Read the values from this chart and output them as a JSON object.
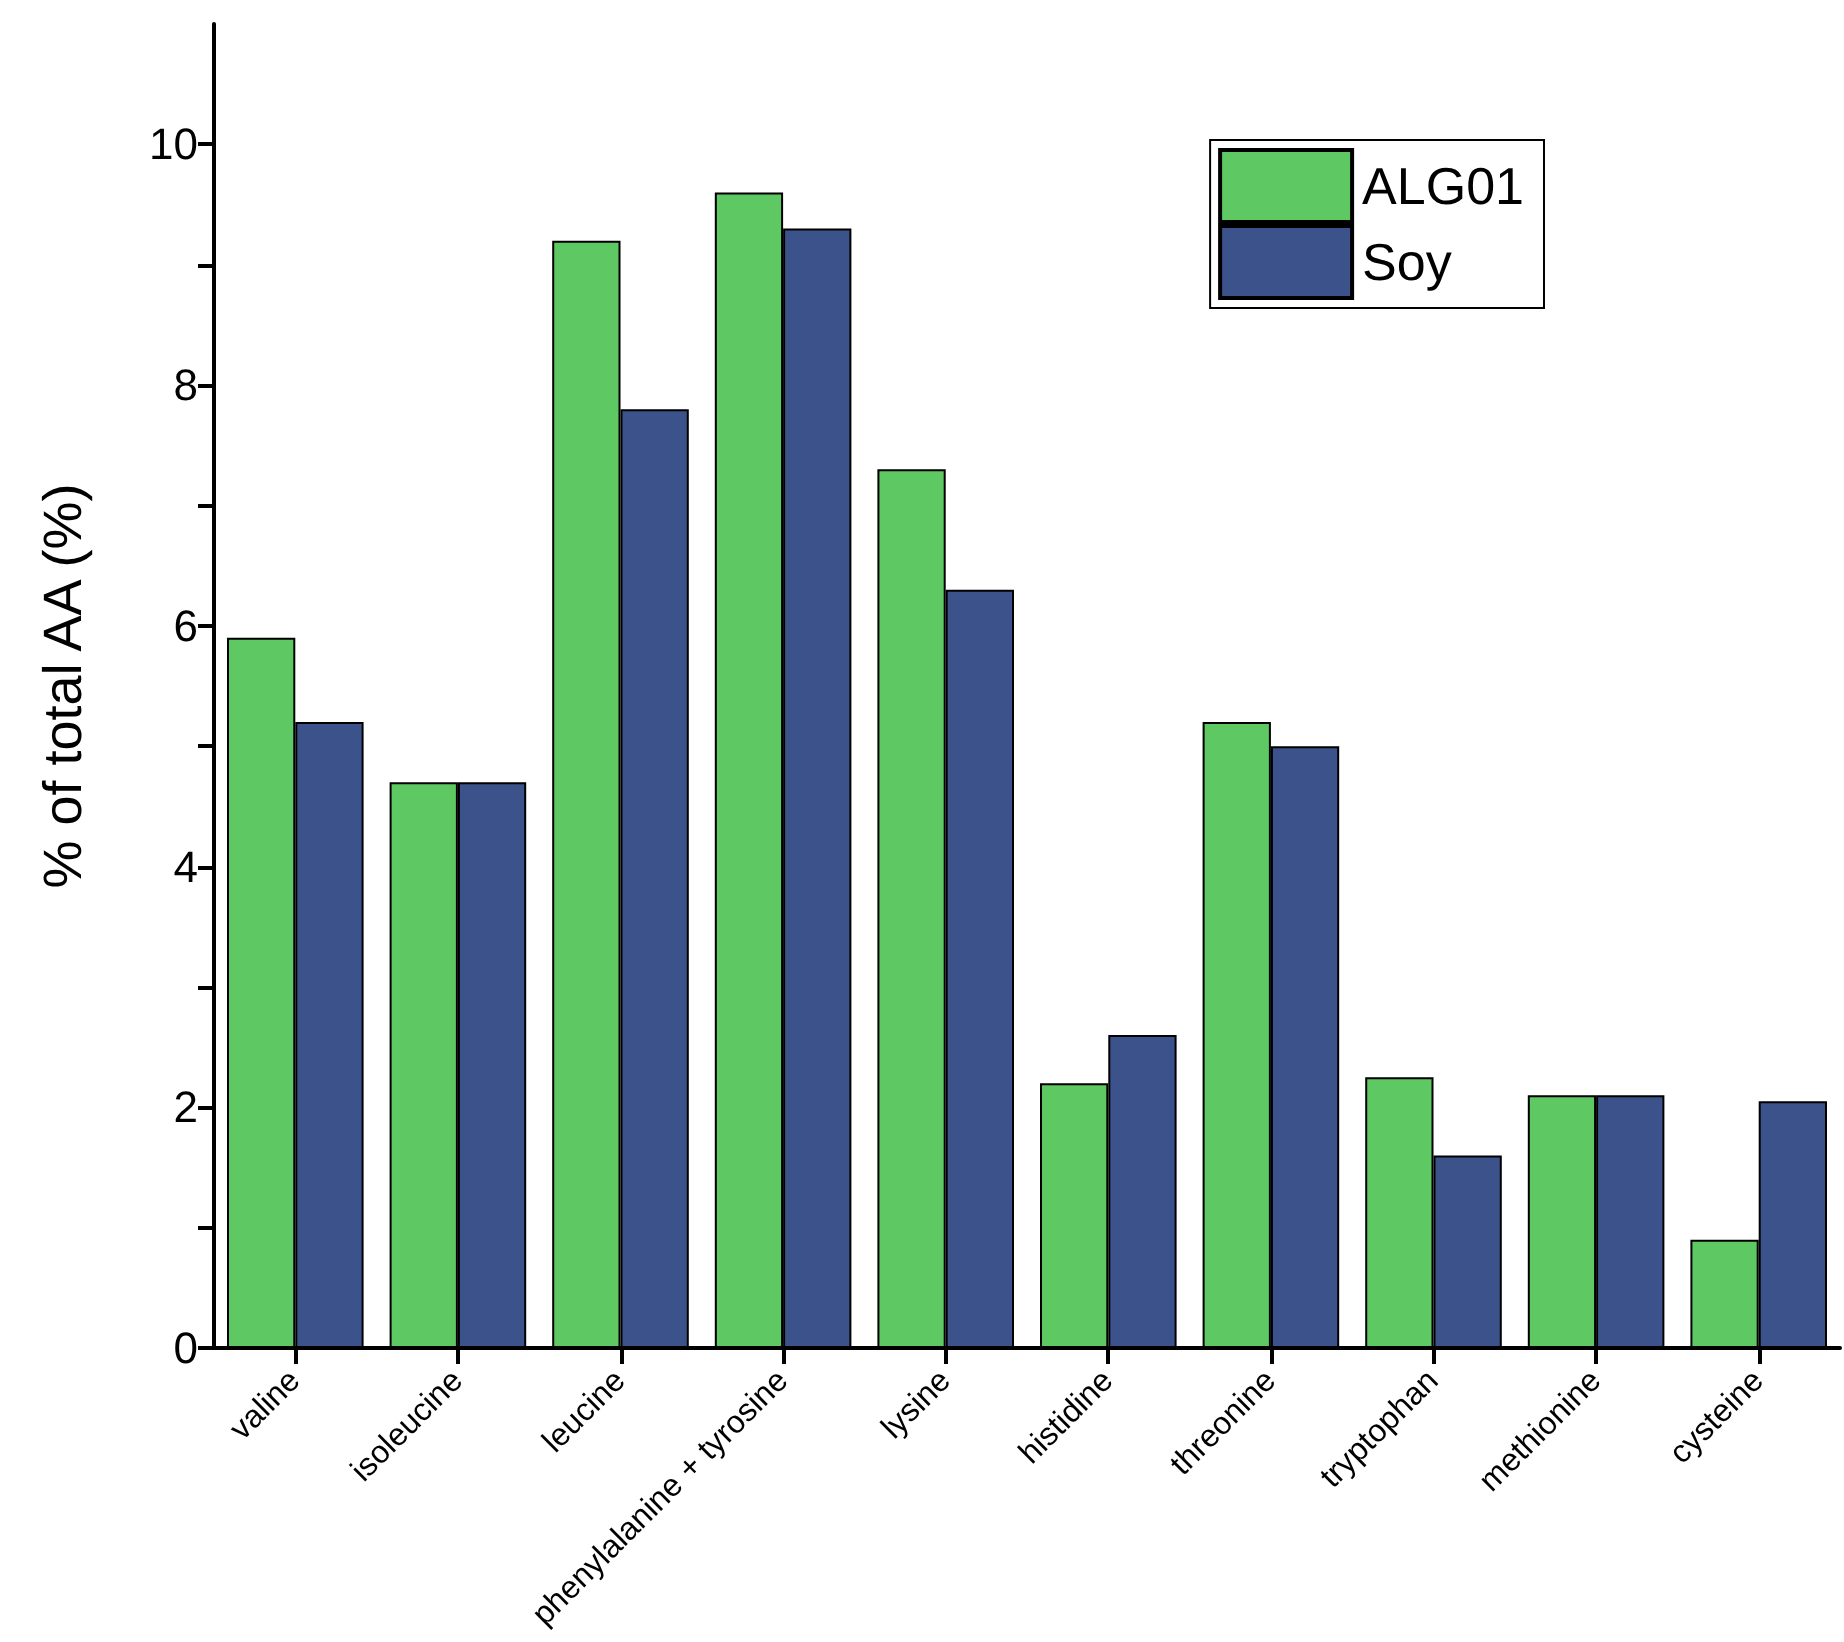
{
  "chart_data": {
    "type": "bar",
    "ylabel": "% of total AA (%)",
    "categories": [
      "valine",
      "isoleucine",
      "leucine",
      "phenylalanine + tyrosine",
      "lysine",
      "histidine",
      "threonine",
      "tryptophan",
      "methionine",
      "cysteine"
    ],
    "series": [
      {
        "name": "ALG01",
        "color": "#5ec962",
        "values": [
          5.9,
          4.7,
          9.2,
          9.6,
          7.3,
          2.2,
          5.2,
          2.25,
          2.1,
          0.9
        ]
      },
      {
        "name": "Soy",
        "color": "#3b528b",
        "values": [
          5.2,
          4.7,
          7.8,
          9.3,
          6.3,
          2.6,
          5.0,
          1.6,
          2.1,
          2.05
        ]
      }
    ],
    "ylim": [
      0,
      11
    ],
    "yticks": [
      0,
      {
        "value": 1,
        "label": null
      },
      2,
      {
        "value": 3,
        "label": null
      },
      4,
      {
        "value": 5,
        "label": null
      },
      6,
      {
        "value": 7,
        "label": null
      },
      8,
      {
        "value": 9,
        "label": null
      },
      10
    ],
    "grid": false,
    "legend": "top right"
  }
}
